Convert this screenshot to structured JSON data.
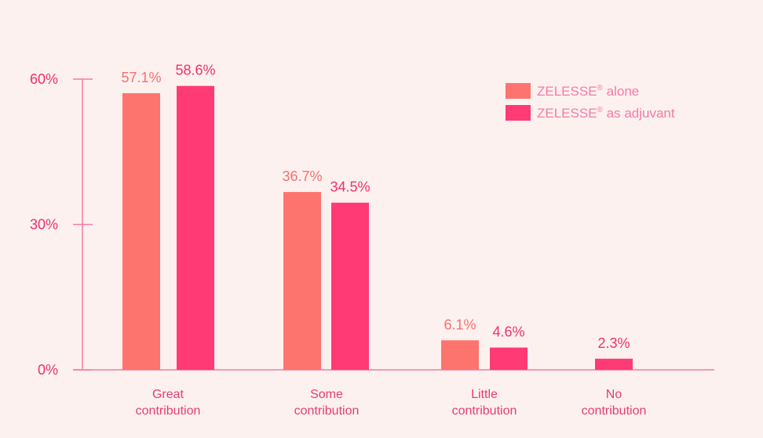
{
  "colors": {
    "background": "#fdf1ef",
    "axis": "#f57aa6",
    "tick_text": "#f0306a",
    "category_text": "#e73d6f",
    "legend_text": "#f57aa6"
  },
  "chart_data": {
    "type": "bar",
    "categories": [
      [
        "Great",
        "contribution"
      ],
      [
        "Some",
        "contribution"
      ],
      [
        "Little",
        "contribution"
      ],
      [
        "No",
        "contribution"
      ]
    ],
    "series": [
      {
        "name": "ZELESSE",
        "name_sup": "®",
        "name_rest": " alone",
        "color": "#fd746f",
        "label_color": "#f96f70",
        "values": [
          57.1,
          36.7,
          6.1,
          null
        ],
        "labels": [
          "57.1%",
          "36.7%",
          "6.1%",
          ""
        ]
      },
      {
        "name": "ZELESSE",
        "name_sup": "®",
        "name_rest": " as adjuvant",
        "color": "#ff3a74",
        "label_color": "#f0306a",
        "values": [
          58.6,
          34.5,
          4.6,
          2.3
        ],
        "labels": [
          "58.6%",
          "34.5%",
          "4.6%",
          "2.3%"
        ]
      }
    ],
    "y_ticks": [
      {
        "value": 0,
        "label": "0%"
      },
      {
        "value": 30,
        "label": "30%"
      },
      {
        "value": 60,
        "label": "60%"
      }
    ],
    "ylim": [
      0,
      60
    ],
    "legend_position": "top-right",
    "grid": false
  }
}
